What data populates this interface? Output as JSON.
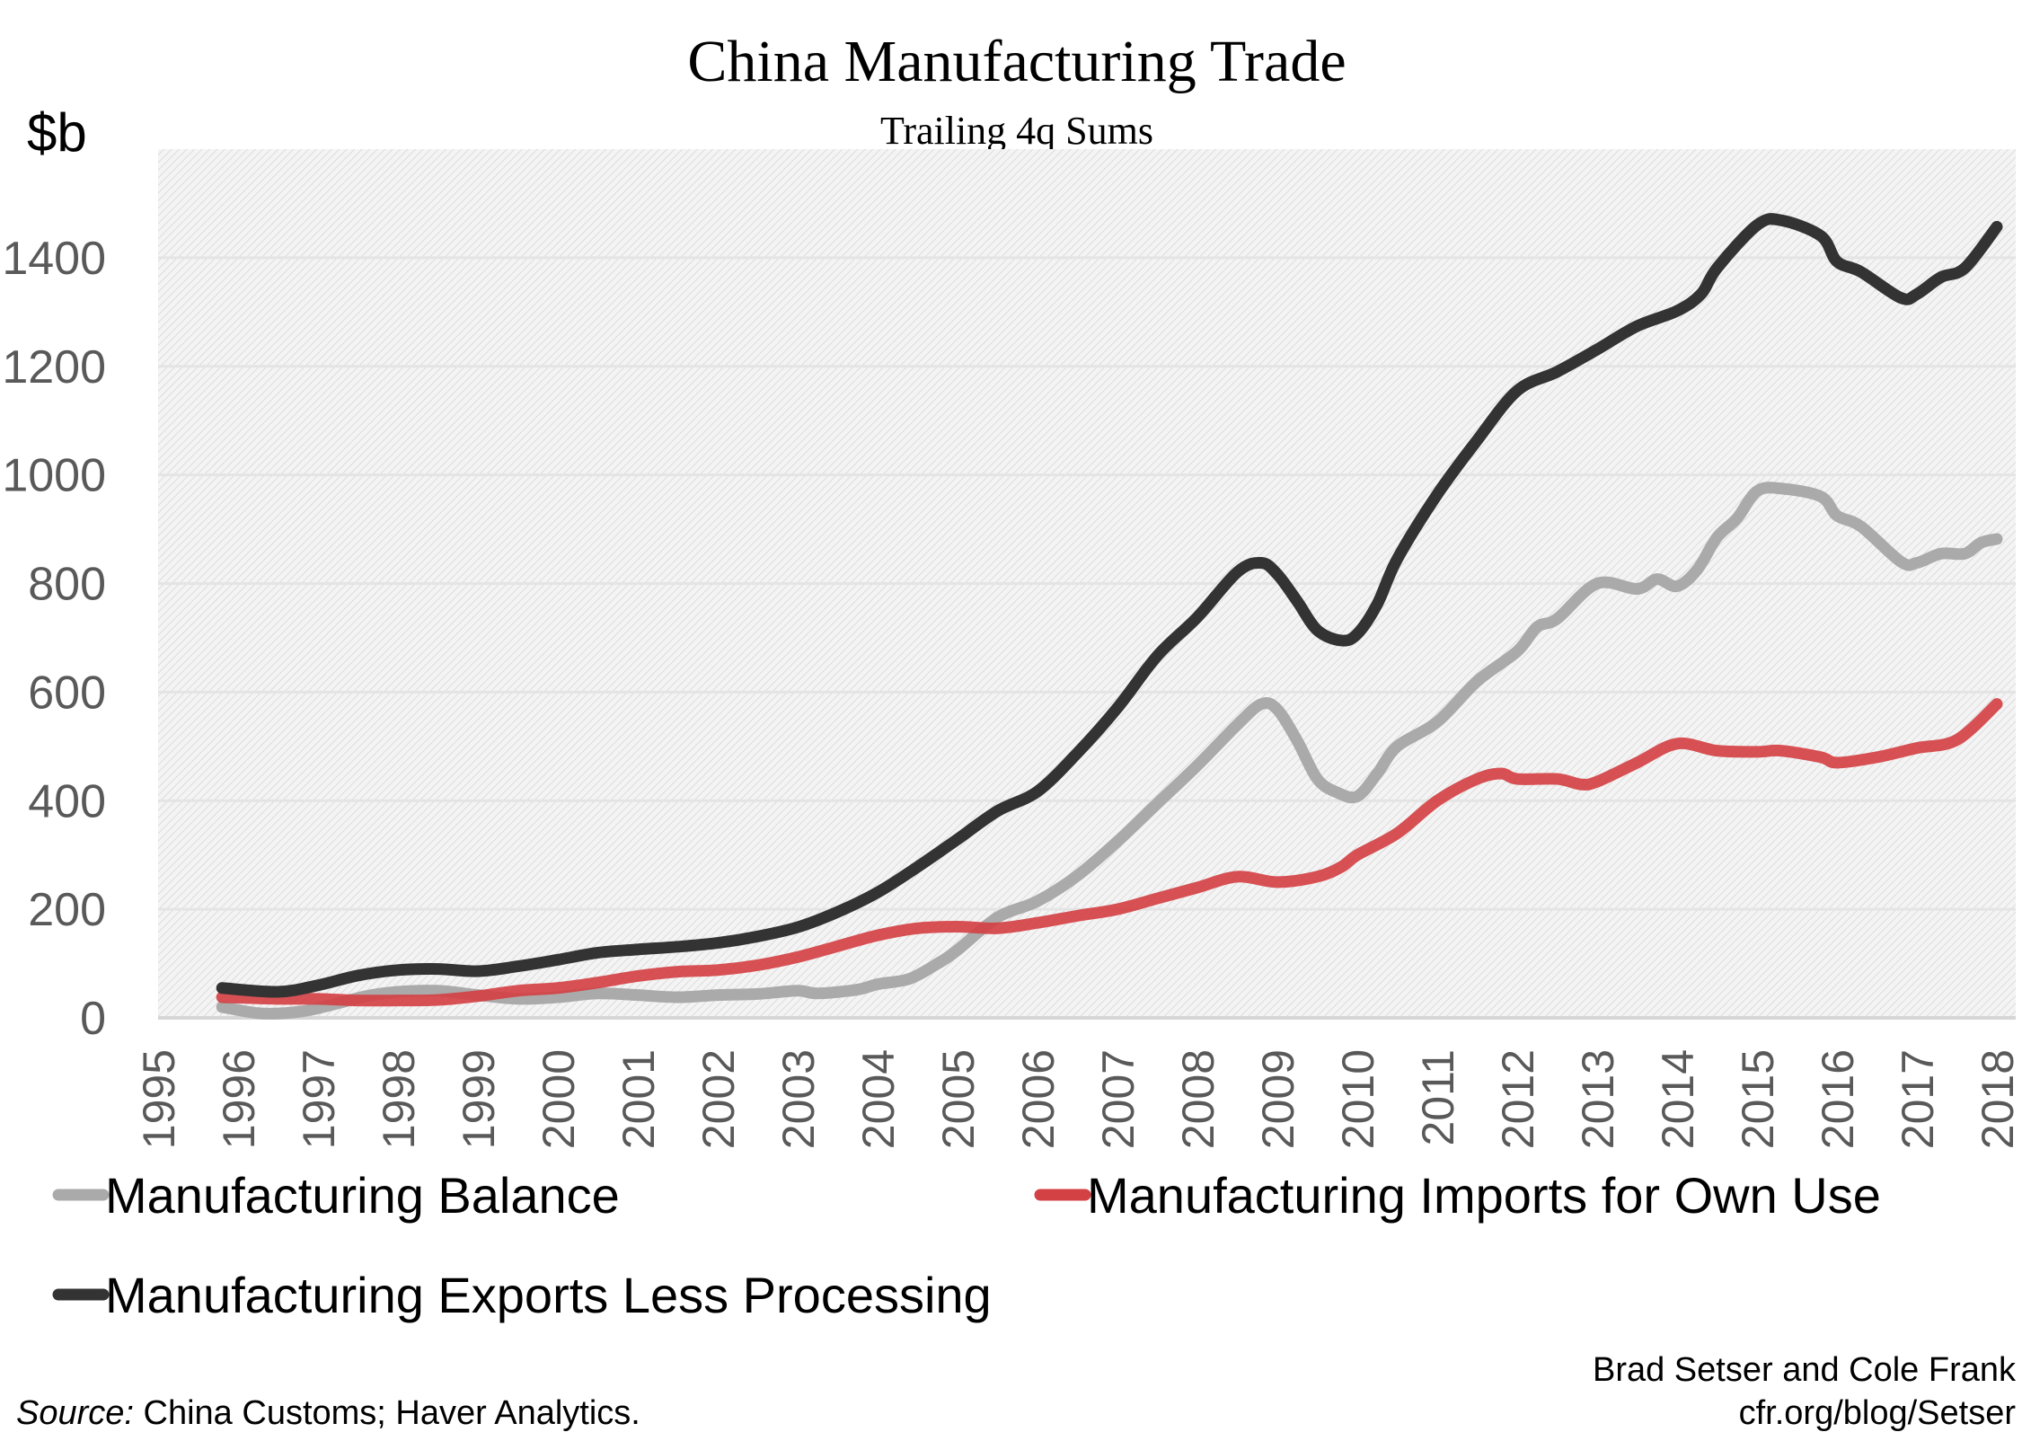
{
  "chart_data": {
    "type": "line",
    "title": "China Manufacturing Trade",
    "subtitle": "Trailing 4q Sums",
    "ylabel": "$b",
    "xlabel": "",
    "ylim": [
      0,
      1600
    ],
    "xlim": [
      1995,
      2018
    ],
    "yticks": [
      0,
      200,
      400,
      600,
      800,
      1000,
      1200,
      1400
    ],
    "xticks": [
      "1995",
      "1996",
      "1997",
      "1998",
      "1999",
      "2000",
      "2001",
      "2002",
      "2003",
      "2004",
      "2005",
      "2006",
      "2007",
      "2008",
      "2009",
      "2010",
      "2011",
      "2012",
      "2013",
      "2014",
      "2015",
      "2016",
      "2017",
      "2018"
    ],
    "grid": true,
    "background": "hatched light gray",
    "legend_position": "bottom",
    "series": [
      {
        "name": "Manufacturing Balance",
        "color": "#aaaaaa",
        "points": [
          [
            1995.8,
            20
          ],
          [
            1996.3,
            8
          ],
          [
            1996.8,
            12
          ],
          [
            1997.2,
            25
          ],
          [
            1997.6,
            40
          ],
          [
            1998,
            48
          ],
          [
            1998.5,
            50
          ],
          [
            1999,
            42
          ],
          [
            1999.5,
            35
          ],
          [
            2000,
            38
          ],
          [
            2000.5,
            45
          ],
          [
            2001,
            42
          ],
          [
            2001.5,
            38
          ],
          [
            2002,
            42
          ],
          [
            2002.5,
            44
          ],
          [
            2003,
            50
          ],
          [
            2003.25,
            45
          ],
          [
            2003.75,
            52
          ],
          [
            2004,
            62
          ],
          [
            2004.4,
            72
          ],
          [
            2004.75,
            100
          ],
          [
            2005,
            125
          ],
          [
            2005.5,
            185
          ],
          [
            2006,
            215
          ],
          [
            2006.5,
            262
          ],
          [
            2007,
            325
          ],
          [
            2007.5,
            395
          ],
          [
            2008,
            465
          ],
          [
            2008.5,
            540
          ],
          [
            2008.8,
            578
          ],
          [
            2009,
            568
          ],
          [
            2009.25,
            510
          ],
          [
            2009.5,
            440
          ],
          [
            2009.75,
            415
          ],
          [
            2010,
            408
          ],
          [
            2010.25,
            450
          ],
          [
            2010.5,
            500
          ],
          [
            2011,
            545
          ],
          [
            2011.5,
            620
          ],
          [
            2012,
            675
          ],
          [
            2012.25,
            720
          ],
          [
            2012.5,
            735
          ],
          [
            2013,
            800
          ],
          [
            2013.5,
            790
          ],
          [
            2013.75,
            808
          ],
          [
            2014,
            795
          ],
          [
            2014.25,
            825
          ],
          [
            2014.5,
            885
          ],
          [
            2014.75,
            920
          ],
          [
            2015,
            970
          ],
          [
            2015.3,
            975
          ],
          [
            2015.8,
            960
          ],
          [
            2016,
            925
          ],
          [
            2016.3,
            905
          ],
          [
            2016.8,
            840
          ],
          [
            2017,
            838
          ],
          [
            2017.3,
            855
          ],
          [
            2017.6,
            855
          ],
          [
            2017.8,
            875
          ],
          [
            2018,
            882
          ]
        ]
      },
      {
        "name": "Manufacturing Imports for Own Use",
        "color": "#d44144",
        "points": [
          [
            1995.8,
            38
          ],
          [
            1996.5,
            35
          ],
          [
            1997,
            35
          ],
          [
            1997.5,
            32
          ],
          [
            1998,
            32
          ],
          [
            1998.5,
            33
          ],
          [
            1999,
            40
          ],
          [
            1999.5,
            50
          ],
          [
            2000,
            55
          ],
          [
            2000.5,
            65
          ],
          [
            2001,
            77
          ],
          [
            2001.5,
            85
          ],
          [
            2002,
            88
          ],
          [
            2002.5,
            97
          ],
          [
            2003,
            112
          ],
          [
            2003.5,
            132
          ],
          [
            2004,
            152
          ],
          [
            2004.5,
            165
          ],
          [
            2005,
            168
          ],
          [
            2005.5,
            165
          ],
          [
            2006,
            175
          ],
          [
            2006.5,
            188
          ],
          [
            2007,
            200
          ],
          [
            2007.5,
            220
          ],
          [
            2008,
            240
          ],
          [
            2008.5,
            260
          ],
          [
            2009,
            250
          ],
          [
            2009.5,
            260
          ],
          [
            2009.8,
            278
          ],
          [
            2010,
            300
          ],
          [
            2010.5,
            340
          ],
          [
            2011,
            400
          ],
          [
            2011.5,
            440
          ],
          [
            2011.8,
            450
          ],
          [
            2012,
            440
          ],
          [
            2012.5,
            440
          ],
          [
            2012.8,
            430
          ],
          [
            2013,
            435
          ],
          [
            2013.5,
            470
          ],
          [
            2014,
            505
          ],
          [
            2014.5,
            492
          ],
          [
            2015,
            490
          ],
          [
            2015.3,
            492
          ],
          [
            2015.8,
            480
          ],
          [
            2016,
            470
          ],
          [
            2016.5,
            480
          ],
          [
            2017,
            497
          ],
          [
            2017.5,
            512
          ],
          [
            2018,
            578
          ]
        ]
      },
      {
        "name": "Manufacturing Exports Less Processing",
        "color": "#333333",
        "points": [
          [
            1995.8,
            55
          ],
          [
            1996.5,
            48
          ],
          [
            1997,
            60
          ],
          [
            1997.5,
            78
          ],
          [
            1998,
            88
          ],
          [
            1998.5,
            90
          ],
          [
            1999,
            86
          ],
          [
            1999.5,
            95
          ],
          [
            2000,
            107
          ],
          [
            2000.5,
            120
          ],
          [
            2001,
            126
          ],
          [
            2001.5,
            131
          ],
          [
            2002,
            138
          ],
          [
            2002.5,
            150
          ],
          [
            2003,
            167
          ],
          [
            2003.5,
            195
          ],
          [
            2004,
            231
          ],
          [
            2004.5,
            278
          ],
          [
            2005,
            329
          ],
          [
            2005.5,
            381
          ],
          [
            2006,
            417
          ],
          [
            2006.5,
            488
          ],
          [
            2007,
            571
          ],
          [
            2007.5,
            667
          ],
          [
            2008,
            738
          ],
          [
            2008.5,
            821
          ],
          [
            2008.8,
            838
          ],
          [
            2009,
            817
          ],
          [
            2009.25,
            767
          ],
          [
            2009.5,
            714
          ],
          [
            2009.8,
            695
          ],
          [
            2010,
            707
          ],
          [
            2010.25,
            762
          ],
          [
            2010.5,
            845
          ],
          [
            2011,
            964
          ],
          [
            2011.5,
            1064
          ],
          [
            2012,
            1155
          ],
          [
            2012.5,
            1190
          ],
          [
            2013,
            1231
          ],
          [
            2013.5,
            1274
          ],
          [
            2014,
            1302
          ],
          [
            2014.3,
            1333
          ],
          [
            2014.5,
            1381
          ],
          [
            2015,
            1460
          ],
          [
            2015.3,
            1469
          ],
          [
            2015.8,
            1440
          ],
          [
            2016,
            1393
          ],
          [
            2016.3,
            1374
          ],
          [
            2016.8,
            1326
          ],
          [
            2017,
            1333
          ],
          [
            2017.3,
            1364
          ],
          [
            2017.6,
            1381
          ],
          [
            2018,
            1457
          ]
        ]
      }
    ]
  },
  "source": {
    "label": "Source:",
    "text": " China Customs; Haver Analytics."
  },
  "credits": {
    "authors": "Brad Setser and Cole Frank",
    "site": "cfr.org/blog/Setser"
  }
}
